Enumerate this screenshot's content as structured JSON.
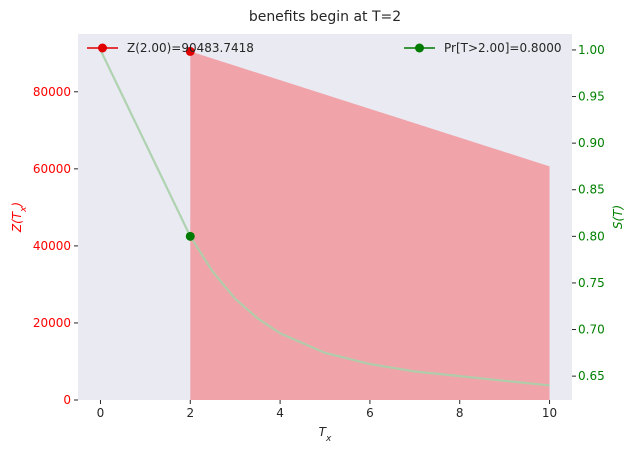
{
  "chart_data": {
    "type": "area",
    "title": "benefits begin at T=2",
    "xlabel_base": "T",
    "xlabel_sub": "x",
    "ylabel_left_pre": "Z(",
    "ylabel_left_base": "T",
    "ylabel_left_sub": "x",
    "ylabel_left_post": ")",
    "ylabel_right_pre": "S(",
    "ylabel_right_base": "T",
    "ylabel_right_post": ")",
    "x_range": [
      -0.5,
      10.5
    ],
    "x_ticks": [
      0,
      2,
      4,
      6,
      8,
      10
    ],
    "y_left_range": [
      0,
      95000
    ],
    "y_left_ticks": [
      0,
      20000,
      40000,
      60000,
      80000
    ],
    "y_right_range": [
      0.6244,
      1.0171
    ],
    "y_right_ticks": [
      0.65,
      0.7,
      0.75,
      0.8,
      0.85,
      0.9,
      0.95,
      1.0
    ],
    "grid": false,
    "background": "#eaeaf2",
    "colors": {
      "left_axis": "#ff0000",
      "right_axis": "#008000",
      "area_fill": "#f0a4aa",
      "survival_line": "#a8d0a8",
      "z_marker": "#e00000",
      "s_marker": "#007a00"
    },
    "z_area": {
      "x": [
        2,
        10
      ],
      "y": [
        90483.7418,
        60653.066
      ]
    },
    "survival_curve": {
      "x": [
        0,
        0.5,
        1,
        1.5,
        2,
        2.5,
        3,
        3.5,
        4,
        5,
        6,
        7,
        8,
        9,
        10
      ],
      "y": [
        1.0,
        0.95,
        0.9,
        0.85,
        0.8,
        0.762,
        0.733,
        0.712,
        0.696,
        0.675,
        0.663,
        0.655,
        0.65,
        0.645,
        0.64
      ]
    },
    "z_point": {
      "x": 2.0,
      "y": 90483.7418
    },
    "s_point": {
      "x": 2.0,
      "y": 0.8
    },
    "legend_left": "Z(2.00)=90483.7418",
    "legend_right": "Pr[T>2.00]=0.8000",
    "legend_left_position": "upper-left",
    "legend_right_position": "upper-right"
  }
}
